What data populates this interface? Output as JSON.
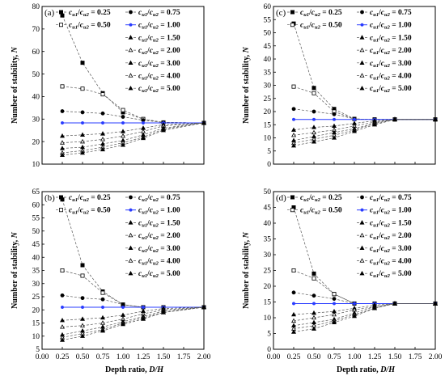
{
  "chart_data": [
    {
      "type": "line",
      "panel_label": "(a)",
      "xlabel": "",
      "ylabel": "Number of stability, N",
      "xlim": [
        0,
        2
      ],
      "ylim": [
        10,
        80
      ],
      "yticks": [
        10,
        20,
        30,
        40,
        50,
        60,
        70,
        80
      ],
      "x": [
        0.25,
        0.5,
        0.75,
        1.0,
        1.25,
        1.5,
        2.0
      ],
      "series": [
        {
          "name": "0.25",
          "values": [
            76,
            55,
            41.5,
            33,
            30,
            28.5,
            28.3
          ]
        },
        {
          "name": "0.50",
          "values": [
            44.5,
            43.5,
            41,
            34,
            30,
            28.5,
            28.3
          ]
        },
        {
          "name": "0.75",
          "values": [
            33.5,
            33,
            32.5,
            31,
            29.5,
            28.5,
            28.3
          ]
        },
        {
          "name": "1.00",
          "values": [
            28.3,
            28.3,
            28.3,
            28.3,
            28.3,
            28.3,
            28.3
          ]
        },
        {
          "name": "1.50",
          "values": [
            22.5,
            23,
            23.5,
            24.5,
            26,
            27.5,
            28.3
          ]
        },
        {
          "name": "2.00",
          "values": [
            19.5,
            20,
            21,
            22.5,
            24.5,
            27,
            28.3
          ]
        },
        {
          "name": "3.00",
          "values": [
            17,
            17.5,
            19,
            20.5,
            23,
            26,
            28.3
          ]
        },
        {
          "name": "4.00",
          "values": [
            15,
            16,
            17.5,
            19.5,
            22,
            25.5,
            28.3
          ]
        },
        {
          "name": "5.00",
          "values": [
            14,
            15,
            16.5,
            18.5,
            21.5,
            25,
            28.3
          ]
        }
      ]
    },
    {
      "type": "line",
      "panel_label": "(c)",
      "xlabel": "",
      "ylabel": "Number of stability, N",
      "xlim": [
        0,
        2
      ],
      "ylim": [
        0,
        60
      ],
      "yticks": [
        0,
        5,
        10,
        15,
        20,
        25,
        30,
        35,
        40,
        45,
        50,
        55,
        60
      ],
      "x": [
        0.25,
        0.5,
        0.75,
        1.0,
        1.25,
        1.5,
        2.0
      ],
      "series": [
        {
          "name": "0.25",
          "values": [
            53.5,
            29,
            21,
            17.2,
            17,
            17,
            17
          ]
        },
        {
          "name": "0.50",
          "values": [
            29.5,
            27,
            20,
            17.2,
            17,
            17,
            17
          ]
        },
        {
          "name": "0.75",
          "values": [
            21,
            20,
            19,
            17.2,
            17,
            17,
            17
          ]
        },
        {
          "name": "1.00",
          "values": [
            17,
            17,
            17,
            17,
            17,
            17,
            17
          ]
        },
        {
          "name": "1.50",
          "values": [
            13,
            14,
            14.5,
            15.5,
            16.5,
            17,
            17
          ]
        },
        {
          "name": "2.00",
          "values": [
            11,
            12,
            13,
            14.5,
            16,
            17,
            17
          ]
        },
        {
          "name": "3.00",
          "values": [
            9,
            10.5,
            12,
            13.5,
            15.5,
            17,
            17
          ]
        },
        {
          "name": "4.00",
          "values": [
            8,
            9.5,
            11,
            13,
            15.5,
            17,
            17
          ]
        },
        {
          "name": "5.00",
          "values": [
            7,
            8.5,
            10,
            12.5,
            15,
            17,
            17
          ]
        }
      ]
    },
    {
      "type": "line",
      "panel_label": "(b)",
      "xlabel": "Depth ratio, D/H",
      "ylabel": "Number of stability, N",
      "xlim": [
        0,
        2
      ],
      "ylim": [
        5,
        65
      ],
      "yticks": [
        5,
        10,
        15,
        20,
        25,
        30,
        35,
        40,
        45,
        50,
        55,
        60,
        65
      ],
      "xticks": [
        0.0,
        0.25,
        0.5,
        0.75,
        1.0,
        1.25,
        1.5,
        1.75,
        2.0
      ],
      "xtick_labels": [
        "0.00",
        "0.25",
        "0.50",
        "0.75",
        "1.00",
        "1.25",
        "1.50",
        "1.75",
        "2.00"
      ],
      "x": [
        0.25,
        0.5,
        0.75,
        1.0,
        1.25,
        1.5,
        2.0
      ],
      "series": [
        {
          "name": "0.25",
          "values": [
            62,
            37,
            27,
            22,
            21,
            21,
            21
          ]
        },
        {
          "name": "0.50",
          "values": [
            35,
            33,
            26.5,
            22,
            21,
            21,
            21
          ]
        },
        {
          "name": "0.75",
          "values": [
            25.5,
            24.5,
            24,
            22,
            21,
            21,
            21
          ]
        },
        {
          "name": "1.00",
          "values": [
            21,
            21,
            21,
            21,
            21,
            21,
            21
          ]
        },
        {
          "name": "1.50",
          "values": [
            16,
            16.5,
            17,
            18,
            19.5,
            20.5,
            21
          ]
        },
        {
          "name": "2.00",
          "values": [
            13.5,
            14,
            15,
            16.5,
            18.5,
            20,
            21
          ]
        },
        {
          "name": "3.00",
          "values": [
            10.5,
            12,
            13.5,
            15.5,
            17.5,
            19.5,
            21
          ]
        },
        {
          "name": "4.00",
          "values": [
            9.5,
            11,
            12.5,
            15,
            17,
            19,
            21
          ]
        },
        {
          "name": "5.00",
          "values": [
            8.5,
            10,
            12,
            14.5,
            16.5,
            19,
            21
          ]
        }
      ]
    },
    {
      "type": "line",
      "panel_label": "(d)",
      "xlabel": "Depth ratio, D/H",
      "ylabel": "Number of stability, N",
      "xlim": [
        0,
        2
      ],
      "ylim": [
        0,
        50
      ],
      "yticks": [
        0,
        5,
        10,
        15,
        20,
        25,
        30,
        35,
        40,
        45,
        50
      ],
      "xticks": [
        0.0,
        0.25,
        0.5,
        0.75,
        1.0,
        1.25,
        1.5,
        1.75,
        2.0
      ],
      "xtick_labels": [
        "0.00",
        "0.25",
        "0.50",
        "0.75",
        "1.00",
        "1.25",
        "1.50",
        "1.75",
        "2.00"
      ],
      "x": [
        0.25,
        0.5,
        0.75,
        1.0,
        1.25,
        1.5,
        2.0
      ],
      "series": [
        {
          "name": "0.25",
          "values": [
            45,
            24,
            17.5,
            14.5,
            14.5,
            14.5,
            14.5
          ]
        },
        {
          "name": "0.50",
          "values": [
            25,
            22.5,
            17.5,
            14.5,
            14.5,
            14.5,
            14.5
          ]
        },
        {
          "name": "0.75",
          "values": [
            18,
            17,
            16,
            14.5,
            14.5,
            14.5,
            14.5
          ]
        },
        {
          "name": "1.00",
          "values": [
            14.5,
            14.5,
            14.5,
            14.5,
            14.5,
            14.5,
            14.5
          ]
        },
        {
          "name": "1.50",
          "values": [
            11,
            11.5,
            12,
            13,
            14,
            14.5,
            14.5
          ]
        },
        {
          "name": "2.00",
          "values": [
            9,
            10,
            11,
            12.5,
            13.5,
            14.5,
            14.5
          ]
        },
        {
          "name": "3.00",
          "values": [
            7.5,
            8.5,
            9.5,
            11.5,
            13.5,
            14.5,
            14.5
          ]
        },
        {
          "name": "4.00",
          "values": [
            6.5,
            7.5,
            9,
            11,
            13,
            14.5,
            14.5
          ]
        },
        {
          "name": "5.00",
          "values": [
            5.5,
            6.5,
            8.5,
            10.5,
            13,
            14.5,
            14.5
          ]
        }
      ]
    }
  ],
  "legend": {
    "prefix_main": "c",
    "prefix_sub": "u1",
    "slash": "/",
    "divisor_main": "c",
    "divisor_sub": "u2",
    "equals": " = "
  },
  "styles": {
    "line_color": "#555555",
    "highlight_color": "#2a3cff",
    "marker_color": "#000000",
    "markers": [
      "square",
      "square-open",
      "circle",
      "circle-blue",
      "triangle",
      "triangle-open",
      "triangle",
      "triangle-open",
      "triangle"
    ]
  }
}
